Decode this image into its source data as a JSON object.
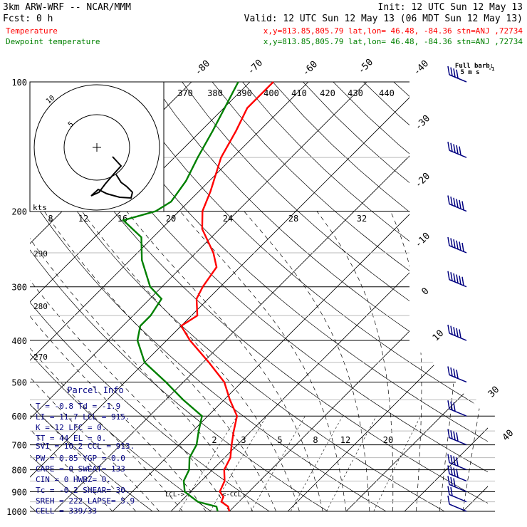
{
  "header": {
    "model_line": "3km ARW-WRF -- NCAR/MMM",
    "init_line": "Init: 12 UTC Sun 12 May 13",
    "fcst_line": "Fcst:     0 h",
    "valid_line": "Valid: 12 UTC Sun 12 May 13 (06 MDT Sun 12 May 13)",
    "temp_label": "Temperature",
    "temp_info": "x,y=813.85,805.79   lat,lon= 46.48, -84.36   stn=ANJ ,72734",
    "dew_label": "Dewpoint temperature",
    "dew_info": "x,y=813.85,805.79   lat,lon= 46.48, -84.36   stn=ANJ ,72734"
  },
  "colors": {
    "temperature": "#ff0000",
    "dewpoint": "#008000",
    "wind": "#000080",
    "axes": "#000000"
  },
  "barb_legend": {
    "title": "Full barb:",
    "value": "5 m s",
    "superscript": "-1"
  },
  "parcel_info": {
    "title": "Parcel Info",
    "rows": [
      "T  =    -0.8  Td =   -1.9",
      "LI =    11.7  LCL =  915.",
      "K  =      12  LFC =    0.",
      "TT =      44  EL  =    0.",
      "SVI =   10.2  CCL =  913.",
      "PW =    0.85  YGP =   0.0",
      "CAPE =     0  SWEAT=  133",
      "CIN =      0  HWBZ=    0.",
      "Tc =    -0.2  SHEAR=  30.",
      "SREH =   222  LAPSE=  5.9",
      "CELL = 339/33"
    ]
  },
  "hodograph": {
    "ring_labels": [
      "5",
      "10"
    ],
    "kts_label": "kts"
  },
  "chart_data": {
    "type": "line",
    "title": "",
    "xlabel": "",
    "ylabel": "",
    "pressure_ticks": [
      "100",
      "200",
      "300",
      "400",
      "500",
      "600",
      "700",
      "800",
      "900",
      "1000"
    ],
    "isotherm_labels_top": [
      "-80",
      "-70",
      "-60",
      "-50",
      "-40"
    ],
    "isotherm_labels_right": [
      "-30",
      "-20",
      "-10",
      "0",
      "10",
      "30",
      "40"
    ],
    "theta_e_labels": [
      "370",
      "380",
      "390",
      "400",
      "410",
      "420",
      "430",
      "440"
    ],
    "theta_labels": [
      "290",
      "280",
      "270"
    ],
    "wind_speed_labels": [
      "8",
      "12",
      "16",
      "20",
      "24",
      "28",
      "32"
    ],
    "mixing_ratio_labels": [
      "2",
      "3",
      "5",
      "8",
      "12",
      "20"
    ],
    "annotations": [
      "LCL->",
      "<-CCL"
    ],
    "series": [
      {
        "name": "Temperature",
        "color": "#ff0000",
        "points": [
          [
            1000,
            0
          ],
          [
            975,
            -1
          ],
          [
            950,
            -3
          ],
          [
            925,
            -3.5
          ],
          [
            900,
            -5
          ],
          [
            850,
            -6
          ],
          [
            800,
            -8
          ],
          [
            750,
            -9
          ],
          [
            700,
            -11
          ],
          [
            650,
            -13
          ],
          [
            600,
            -15
          ],
          [
            550,
            -19
          ],
          [
            500,
            -23
          ],
          [
            450,
            -29
          ],
          [
            400,
            -36
          ],
          [
            370,
            -40
          ],
          [
            350,
            -39
          ],
          [
            320,
            -42
          ],
          [
            300,
            -43
          ],
          [
            270,
            -44
          ],
          [
            250,
            -47
          ],
          [
            220,
            -53
          ],
          [
            200,
            -56
          ],
          [
            180,
            -58
          ],
          [
            150,
            -62
          ],
          [
            130,
            -64
          ],
          [
            115,
            -66
          ],
          [
            100,
            -66
          ]
        ]
      },
      {
        "name": "Dewpoint temperature",
        "color": "#008000",
        "points": [
          [
            1000,
            -2
          ],
          [
            975,
            -3
          ],
          [
            950,
            -7
          ],
          [
            925,
            -9
          ],
          [
            900,
            -11
          ],
          [
            850,
            -13
          ],
          [
            800,
            -14
          ],
          [
            750,
            -16
          ],
          [
            700,
            -17
          ],
          [
            650,
            -19
          ],
          [
            600,
            -21
          ],
          [
            550,
            -27
          ],
          [
            500,
            -33
          ],
          [
            450,
            -40
          ],
          [
            400,
            -45
          ],
          [
            370,
            -47
          ],
          [
            350,
            -47
          ],
          [
            320,
            -48
          ],
          [
            300,
            -52
          ],
          [
            260,
            -58
          ],
          [
            230,
            -62
          ],
          [
            210,
            -68
          ],
          [
            200,
            -64
          ],
          [
            190,
            -63
          ],
          [
            170,
            -64
          ],
          [
            150,
            -66
          ],
          [
            130,
            -68
          ],
          [
            100,
            -72
          ]
        ]
      }
    ],
    "wind_profile": [
      {
        "p": 1000,
        "speed_ms": 5
      },
      {
        "p": 950,
        "speed_ms": 10
      },
      {
        "p": 900,
        "speed_ms": 15
      },
      {
        "p": 850,
        "speed_ms": 20
      },
      {
        "p": 800,
        "speed_ms": 20
      },
      {
        "p": 700,
        "speed_ms": 20
      },
      {
        "p": 600,
        "speed_ms": 15
      },
      {
        "p": 500,
        "speed_ms": 20
      },
      {
        "p": 400,
        "speed_ms": 25
      },
      {
        "p": 300,
        "speed_ms": 30
      },
      {
        "p": 250,
        "speed_ms": 30
      },
      {
        "p": 200,
        "speed_ms": 30
      },
      {
        "p": 150,
        "speed_ms": 25
      },
      {
        "p": 100,
        "speed_ms": 20
      }
    ]
  }
}
